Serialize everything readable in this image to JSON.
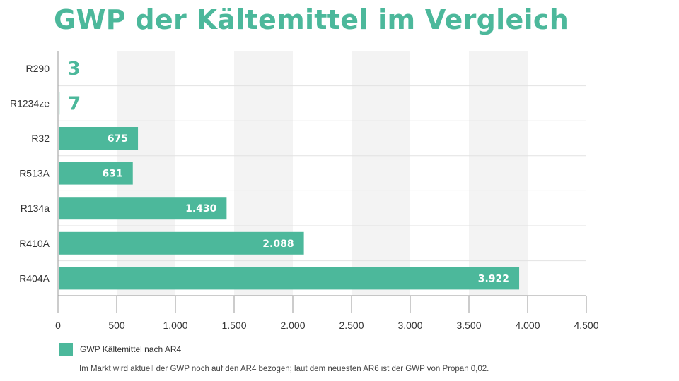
{
  "chart_data": {
    "type": "bar",
    "orientation": "horizontal",
    "title": "GWP der Kältemittel im Vergleich",
    "categories": [
      "R290",
      "R1234ze",
      "R32",
      "R513A",
      "R134a",
      "R410A",
      "R404A"
    ],
    "series": [
      {
        "name": "GWP Kältemittel nach AR4",
        "values": [
          3,
          7,
          675,
          631,
          1430,
          2088,
          3922
        ],
        "value_labels": [
          "3",
          "7",
          "675",
          "631",
          "1.430",
          "2.088",
          "3.922"
        ]
      }
    ],
    "xlim": [
      0,
      4500
    ],
    "x_ticks": [
      0,
      500,
      1000,
      1500,
      2000,
      2500,
      3000,
      3500,
      4000,
      4500
    ],
    "x_tick_labels": [
      "0",
      "500",
      "1.000",
      "1.500",
      "2.000",
      "2.500",
      "3.000",
      "3.500",
      "4.000",
      "4.500"
    ],
    "grid": "alternating vertical bands",
    "legend_position": "bottom-left",
    "colors": {
      "bar": "#4cb89b",
      "band": "#f3f3f3",
      "title": "#4cb89b"
    }
  },
  "footnote": "Im Markt wird aktuell der GWP noch auf den AR4 bezogen; laut dem neuesten AR6 ist der GWP von Propan 0,02."
}
